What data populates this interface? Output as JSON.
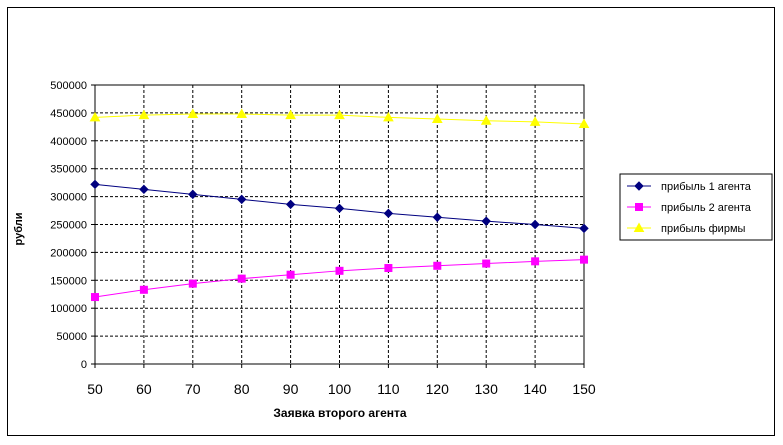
{
  "chart_data": {
    "type": "line",
    "title": "",
    "xlabel": "Заявка второго агента",
    "ylabel": "рубли",
    "x": [
      50,
      60,
      70,
      80,
      90,
      100,
      110,
      120,
      130,
      140,
      150
    ],
    "ylim": [
      0,
      500000
    ],
    "yticks": [
      "0",
      "50000",
      "100000",
      "150000",
      "200000",
      "250000",
      "300000",
      "350000",
      "400000",
      "450000",
      "500000"
    ],
    "xticks": [
      "50",
      "60",
      "70",
      "80",
      "90",
      "100",
      "110",
      "120",
      "130",
      "140",
      "150"
    ],
    "grid": true,
    "legend_position": "right",
    "series": [
      {
        "name": "прибыль 1 агента",
        "color": "#000080",
        "marker": "diamond",
        "values": [
          322000,
          313000,
          304000,
          295000,
          286000,
          279000,
          270000,
          263000,
          256000,
          250000,
          243000
        ]
      },
      {
        "name": "прибыль 2 агента",
        "color": "#ff00ff",
        "marker": "square",
        "values": [
          120000,
          133000,
          144000,
          153000,
          160000,
          167000,
          172000,
          176000,
          180000,
          184000,
          187000
        ]
      },
      {
        "name": "прибыль фирмы",
        "color": "#ffff00",
        "marker": "triangle",
        "values": [
          442000,
          446000,
          448000,
          448000,
          446000,
          446000,
          442000,
          439000,
          436000,
          434000,
          430000
        ]
      }
    ]
  }
}
